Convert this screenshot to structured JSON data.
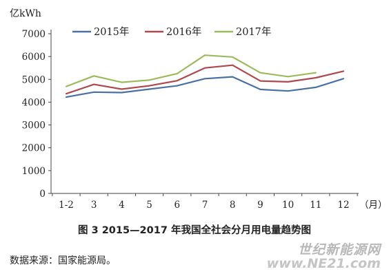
{
  "chart_data": {
    "type": "line",
    "y_unit": "亿kWh",
    "x_unit": "（月）",
    "categories": [
      "1-2",
      "3",
      "4",
      "5",
      "6",
      "7",
      "8",
      "9",
      "10",
      "11",
      "12"
    ],
    "ylim": [
      0,
      7000
    ],
    "yticks": [
      0,
      1000,
      2000,
      3000,
      4000,
      5000,
      6000,
      7000
    ],
    "grid": false,
    "legend_position": "top",
    "series": [
      {
        "name": "2015年",
        "color": "#4a6fa5",
        "values": [
          4220,
          4440,
          4420,
          4570,
          4720,
          5030,
          5110,
          4560,
          4490,
          4650,
          5030
        ]
      },
      {
        "name": "2016年",
        "color": "#b0474d",
        "values": [
          4370,
          4780,
          4570,
          4720,
          4940,
          5500,
          5620,
          4930,
          4890,
          5070,
          5360
        ]
      },
      {
        "name": "2017年",
        "color": "#9bba5b",
        "values": [
          4690,
          5150,
          4870,
          4970,
          5250,
          6060,
          5980,
          5290,
          5120,
          5290,
          null
        ]
      }
    ]
  },
  "caption": "图 3    2015—2017 年我国全社会分月用电量趋势图",
  "source": "数据来源：国家能源局。",
  "watermark": {
    "text": "世纪新能源网",
    "url": "www.NE21.com"
  }
}
